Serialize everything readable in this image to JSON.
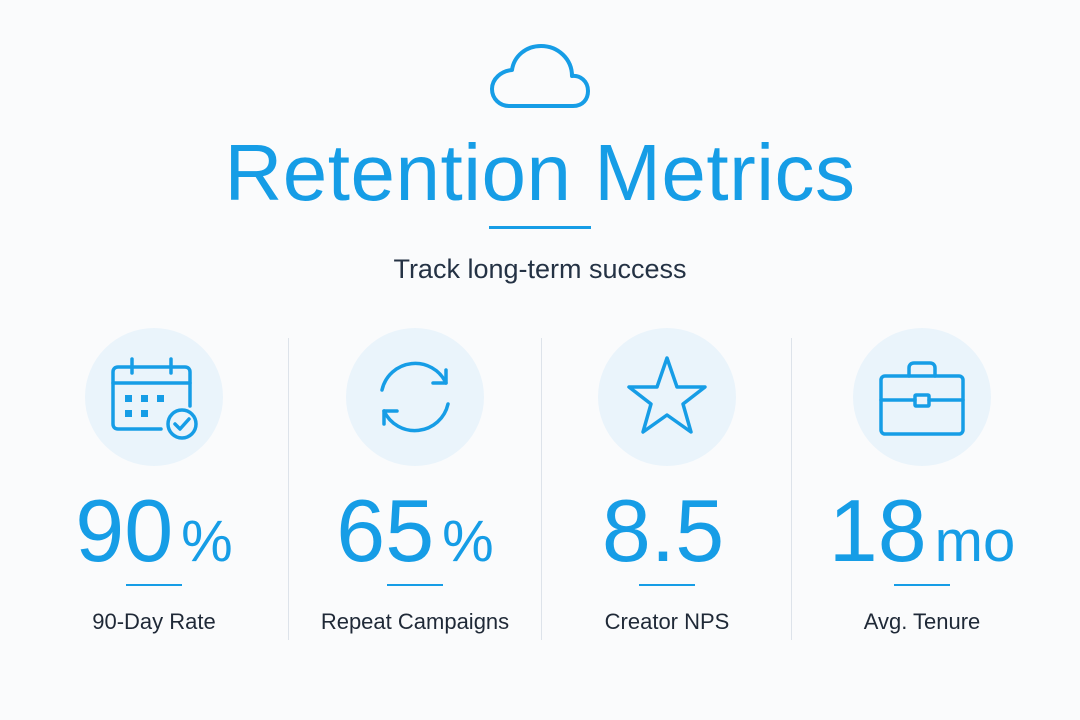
{
  "header": {
    "icon": "cloud-icon",
    "title": "Retention Metrics",
    "subtitle": "Track long-term success"
  },
  "colors": {
    "accent": "#169de6",
    "icon_circle": "#eaf4fb",
    "text": "#1f2937",
    "divider": "#dde3ea"
  },
  "metrics": [
    {
      "icon": "calendar-check-icon",
      "value": "90",
      "unit": "%",
      "label": "90-Day Rate"
    },
    {
      "icon": "refresh-icon",
      "value": "65",
      "unit": "%",
      "label": "Repeat Campaigns"
    },
    {
      "icon": "star-icon",
      "value": "8.5",
      "unit": "",
      "label": "Creator NPS"
    },
    {
      "icon": "briefcase-icon",
      "value": "18",
      "unit": "mo",
      "label": "Avg. Tenure"
    }
  ]
}
